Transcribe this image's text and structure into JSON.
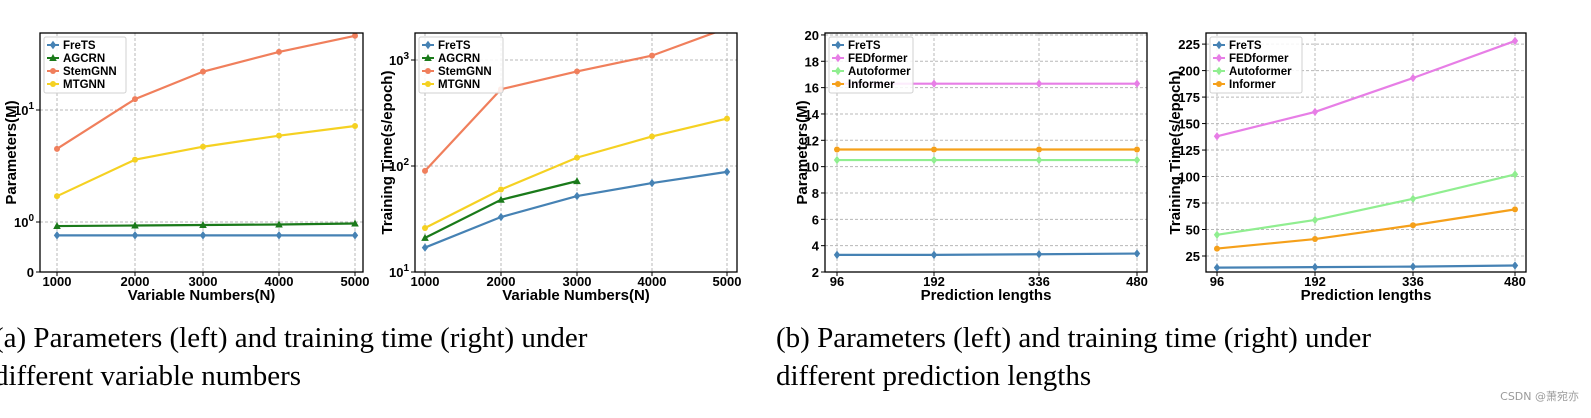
{
  "chart_data": [
    {
      "type": "line",
      "xlabel": "Variable Numbers(N)",
      "ylabel": "Parameters(M)",
      "xticks": [
        "1000",
        "2000",
        "3000",
        "4000",
        "5000"
      ],
      "yticks": [
        {
          "value": 0,
          "label": "0"
        },
        {
          "value": 1,
          "label": "10^0"
        },
        {
          "value": 10,
          "label": "10^1"
        }
      ],
      "yscale": "log",
      "xlim": [
        1000,
        5000
      ],
      "grid": true,
      "legend_position": "top-left",
      "series": [
        {
          "name": "FreTS",
          "color": "#4682b4",
          "marker": "diamond",
          "x": [
            1000,
            2000,
            3000,
            4000,
            5000
          ],
          "y": [
            0.76,
            0.76,
            0.76,
            0.76,
            0.76
          ]
        },
        {
          "name": "AGCRN",
          "color": "#1a7a1a",
          "marker": "triangle",
          "x": [
            1000,
            2000,
            3000,
            4000,
            5000
          ],
          "y": [
            0.92,
            0.93,
            0.94,
            0.95,
            0.97
          ]
        },
        {
          "name": "StemGNN",
          "color": "#f07f5c",
          "marker": "circle",
          "x": [
            1000,
            2000,
            3000,
            4000,
            5000
          ],
          "y": [
            4.5,
            12.5,
            22,
            33,
            46
          ]
        },
        {
          "name": "MTGNN",
          "color": "#f5d122",
          "marker": "circle",
          "x": [
            1000,
            2000,
            3000,
            4000,
            5000
          ],
          "y": [
            1.7,
            3.6,
            4.7,
            5.9,
            7.2
          ]
        }
      ]
    },
    {
      "type": "line",
      "xlabel": "Variable Numbers(N)",
      "ylabel": "Training Time(s/epoch)",
      "xticks": [
        "1000",
        "2000",
        "3000",
        "4000",
        "5000"
      ],
      "yticks": [
        {
          "value": 10,
          "label": "10^1"
        },
        {
          "value": 100,
          "label": "10^2"
        },
        {
          "value": 1000,
          "label": "10^3"
        }
      ],
      "yscale": "log",
      "xlim": [
        1000,
        5000
      ],
      "grid": true,
      "legend_position": "top-left",
      "series": [
        {
          "name": "FreTS",
          "color": "#4682b4",
          "marker": "diamond",
          "x": [
            1000,
            2000,
            3000,
            4000,
            5000
          ],
          "y": [
            17,
            33,
            52,
            69,
            88
          ]
        },
        {
          "name": "AGCRN",
          "color": "#1a7a1a",
          "marker": "triangle",
          "x": [
            1000,
            2000,
            3000
          ],
          "y": [
            21,
            48,
            72
          ]
        },
        {
          "name": "StemGNN",
          "color": "#f07f5c",
          "marker": "circle",
          "x": [
            1000,
            2000,
            3000,
            4000,
            5000
          ],
          "y": [
            90,
            530,
            780,
            1100,
            2000
          ]
        },
        {
          "name": "MTGNN",
          "color": "#f5d122",
          "marker": "circle",
          "x": [
            1000,
            2000,
            3000,
            4000,
            5000
          ],
          "y": [
            26,
            60,
            120,
            190,
            280
          ]
        }
      ]
    },
    {
      "type": "line",
      "xlabel": "Prediction lengths",
      "ylabel": "Parameters(M)",
      "xticks": [
        "96",
        "192",
        "336",
        "480"
      ],
      "yticks": [
        {
          "value": 2,
          "label": "2"
        },
        {
          "value": 4,
          "label": "4"
        },
        {
          "value": 6,
          "label": "6"
        },
        {
          "value": 8,
          "label": "8"
        },
        {
          "value": 10,
          "label": "10"
        },
        {
          "value": 12,
          "label": "12"
        },
        {
          "value": 14,
          "label": "14"
        },
        {
          "value": 16,
          "label": "16"
        },
        {
          "value": 18,
          "label": "18"
        },
        {
          "value": 20,
          "label": "20"
        }
      ],
      "yscale": "linear",
      "ylim": [
        2,
        20
      ],
      "grid": true,
      "legend_position": "top-left",
      "series": [
        {
          "name": "FreTS",
          "color": "#4682b4",
          "marker": "diamond",
          "x": [
            96,
            192,
            336,
            480
          ],
          "y": [
            3.3,
            3.3,
            3.35,
            3.4
          ]
        },
        {
          "name": "FEDformer",
          "color": "#e77ee6",
          "marker": "diamond",
          "x": [
            96,
            192,
            336,
            480
          ],
          "y": [
            16.3,
            16.3,
            16.3,
            16.3
          ]
        },
        {
          "name": "Autoformer",
          "color": "#90ee90",
          "marker": "diamond",
          "x": [
            96,
            192,
            336,
            480
          ],
          "y": [
            10.5,
            10.5,
            10.5,
            10.5
          ]
        },
        {
          "name": "Informer",
          "color": "#f5a01a",
          "marker": "circle",
          "x": [
            96,
            192,
            336,
            480
          ],
          "y": [
            11.3,
            11.3,
            11.3,
            11.3
          ]
        }
      ]
    },
    {
      "type": "line",
      "xlabel": "Prediction lengths",
      "ylabel": "Training Time(s/epoch)",
      "xticks": [
        "96",
        "192",
        "336",
        "480"
      ],
      "yticks": [
        {
          "value": 25,
          "label": "25"
        },
        {
          "value": 50,
          "label": "50"
        },
        {
          "value": 75,
          "label": "75"
        },
        {
          "value": 100,
          "label": "100"
        },
        {
          "value": 125,
          "label": "125"
        },
        {
          "value": 150,
          "label": "150"
        },
        {
          "value": 175,
          "label": "175"
        },
        {
          "value": 200,
          "label": "200"
        },
        {
          "value": 225,
          "label": "225"
        }
      ],
      "yscale": "linear",
      "ylim": [
        13,
        230
      ],
      "grid": true,
      "legend_position": "top-left",
      "series": [
        {
          "name": "FreTS",
          "color": "#4682b4",
          "marker": "diamond",
          "x": [
            96,
            192,
            336,
            480
          ],
          "y": [
            14,
            14.5,
            15,
            16
          ]
        },
        {
          "name": "FEDformer",
          "color": "#e77ee6",
          "marker": "diamond",
          "x": [
            96,
            192,
            336,
            480
          ],
          "y": [
            138,
            161,
            193,
            228
          ]
        },
        {
          "name": "Autoformer",
          "color": "#90ee90",
          "marker": "diamond",
          "x": [
            96,
            192,
            336,
            480
          ],
          "y": [
            45,
            59,
            79,
            102
          ]
        },
        {
          "name": "Informer",
          "color": "#f5a01a",
          "marker": "circle",
          "x": [
            96,
            192,
            336,
            480
          ],
          "y": [
            32,
            41,
            54,
            69
          ]
        }
      ]
    }
  ],
  "captions": {
    "a_line1": "(a) Parameters (left) and training time (right) under",
    "a_line2": "different variable numbers",
    "b_line1": "(b) Parameters (left) and training time (right) under",
    "b_line2": "different prediction lengths"
  },
  "watermark": "CSDN @萧宛亦"
}
